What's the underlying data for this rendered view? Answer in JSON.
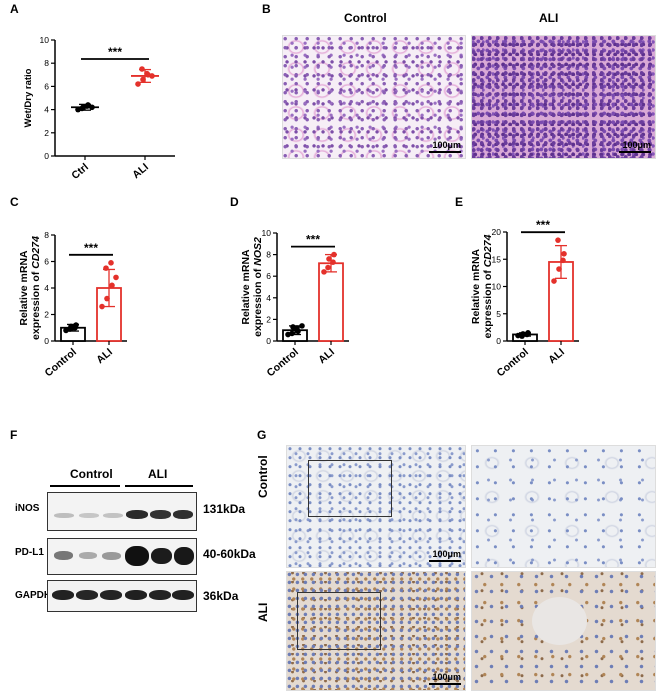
{
  "panels": {
    "A": {
      "label": "A",
      "chart_data": {
        "type": "bar",
        "categories": [
          "Ctrl",
          "ALI"
        ],
        "values": [
          4.2,
          6.9
        ],
        "errors": [
          0.25,
          0.55
        ],
        "points": [
          [
            4.0,
            4.2,
            4.4,
            4.1,
            4.3,
            4.2
          ],
          [
            6.2,
            6.6,
            7.0,
            7.5,
            7.1,
            6.9
          ]
        ],
        "ylabel": "Wet/Dry ratio",
        "ylim": [
          0,
          10
        ],
        "yticks": [
          "0",
          "2",
          "4",
          "6",
          "8",
          "10"
        ],
        "significance": "***",
        "style": "scatter-mean"
      }
    },
    "B": {
      "label": "B",
      "titles": [
        "Control",
        "ALI"
      ],
      "scale": "100μm"
    },
    "C": {
      "label": "C",
      "chart_data": {
        "type": "bar",
        "categories": [
          "Control",
          "ALI"
        ],
        "values": [
          1.0,
          4.0
        ],
        "errors": [
          0.25,
          1.4
        ],
        "points": [
          [
            0.8,
            1.1,
            1.2,
            0.9,
            1.0
          ],
          [
            2.6,
            3.2,
            4.2,
            5.5,
            5.9,
            4.8
          ]
        ],
        "ylabel": "Relative mRNA",
        "ylabel2_prefix": "expression of ",
        "ylabel2_gene": "CD274",
        "ylim": [
          0,
          8
        ],
        "yticks": [
          "0",
          "2",
          "4",
          "6",
          "8"
        ],
        "significance": "***"
      }
    },
    "D": {
      "label": "D",
      "chart_data": {
        "type": "bar",
        "categories": [
          "Control",
          "ALI"
        ],
        "values": [
          1.0,
          7.2
        ],
        "errors": [
          0.4,
          0.8
        ],
        "points": [
          [
            0.6,
            1.3,
            0.9,
            0.7,
            1.2,
            1.4
          ],
          [
            6.4,
            7.6,
            8.0,
            6.8,
            7.3
          ]
        ],
        "ylabel": "Relative mRNA",
        "ylabel2_prefix": "expression of ",
        "ylabel2_gene": "NOS2",
        "ylim": [
          0,
          10
        ],
        "yticks": [
          "0",
          "2",
          "4",
          "6",
          "8",
          "10"
        ],
        "significance": "***"
      }
    },
    "E": {
      "label": "E",
      "chart_data": {
        "type": "bar",
        "categories": [
          "Control",
          "ALI"
        ],
        "values": [
          1.2,
          14.5
        ],
        "errors": [
          0.3,
          3.0
        ],
        "points": [
          [
            1.0,
            1.3,
            1.5,
            0.9,
            1.2
          ],
          [
            11.0,
            13.2,
            16.0,
            18.5,
            14.8
          ]
        ],
        "ylabel": "Relative mRNA",
        "ylabel2_prefix": "expression of ",
        "ylabel2_gene": "CD274",
        "ylim": [
          0,
          20
        ],
        "yticks": [
          "0",
          "5",
          "10",
          "15",
          "20"
        ],
        "significance": "***"
      }
    },
    "F": {
      "label": "F",
      "groups": [
        "Control",
        "ALI"
      ],
      "rows": [
        {
          "protein": "iNOS",
          "size": "131kDa"
        },
        {
          "protein": "PD-L1",
          "size": "40-60kDa"
        },
        {
          "protein": "GAPDH",
          "size": "36kDa"
        }
      ]
    },
    "G": {
      "label": "G",
      "rows": [
        "Control",
        "ALI"
      ],
      "scale": "100μm"
    }
  },
  "colors": {
    "ali": "#e4312b",
    "control": "#000000"
  }
}
